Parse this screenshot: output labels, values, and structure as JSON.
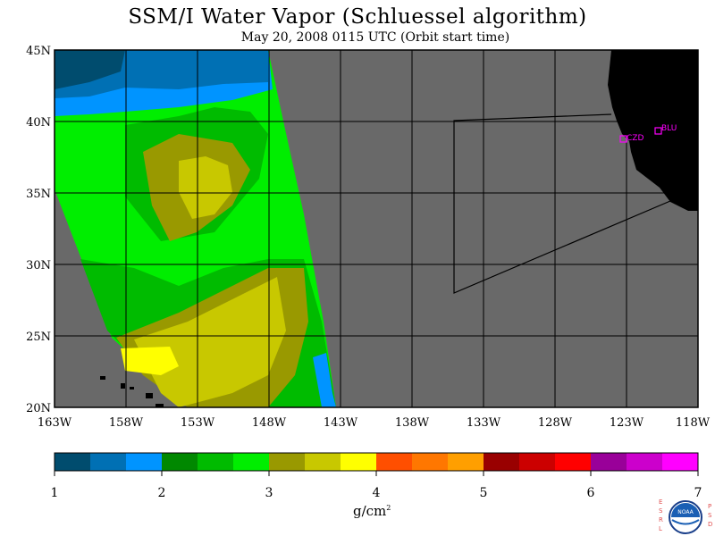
{
  "title": "SSM/I Water Vapor (Schluessel algorithm)",
  "subtitle": "May 20, 2008  0115 UTC  (Orbit start time)",
  "map": {
    "lat_labels": [
      "45N",
      "40N",
      "35N",
      "30N",
      "25N",
      "20N"
    ],
    "lon_labels": [
      "163W",
      "158W",
      "153W",
      "148W",
      "143W",
      "138W",
      "133W",
      "128W",
      "123W",
      "118W"
    ],
    "no_data_color": "#696969",
    "land_color": "#000000",
    "grid_color": "#000000",
    "stations": [
      {
        "id": "CZD",
        "label": "CZD",
        "color": "#ff00ff"
      },
      {
        "id": "BLU",
        "label": "BLU",
        "color": "#ff00ff"
      }
    ]
  },
  "colorbar": {
    "ticks": [
      "1",
      "2",
      "3",
      "4",
      "5",
      "6",
      "7"
    ],
    "units_base": "g/cm",
    "units_sup": "2",
    "colors": [
      "#004c6e",
      "#0070b4",
      "#0094ff",
      "#008800",
      "#00bb00",
      "#00ee00",
      "#999900",
      "#c8c800",
      "#ffff00",
      "#ff4f00",
      "#ff7700",
      "#ff9f00",
      "#990000",
      "#cc0000",
      "#ff0000",
      "#990099",
      "#cc00cc",
      "#ff00ff"
    ]
  },
  "logo": {
    "left_letters": [
      "E",
      "S",
      "R",
      "L"
    ],
    "right_letters": [
      "P",
      "S",
      "D"
    ],
    "center_text": "NOAA"
  }
}
